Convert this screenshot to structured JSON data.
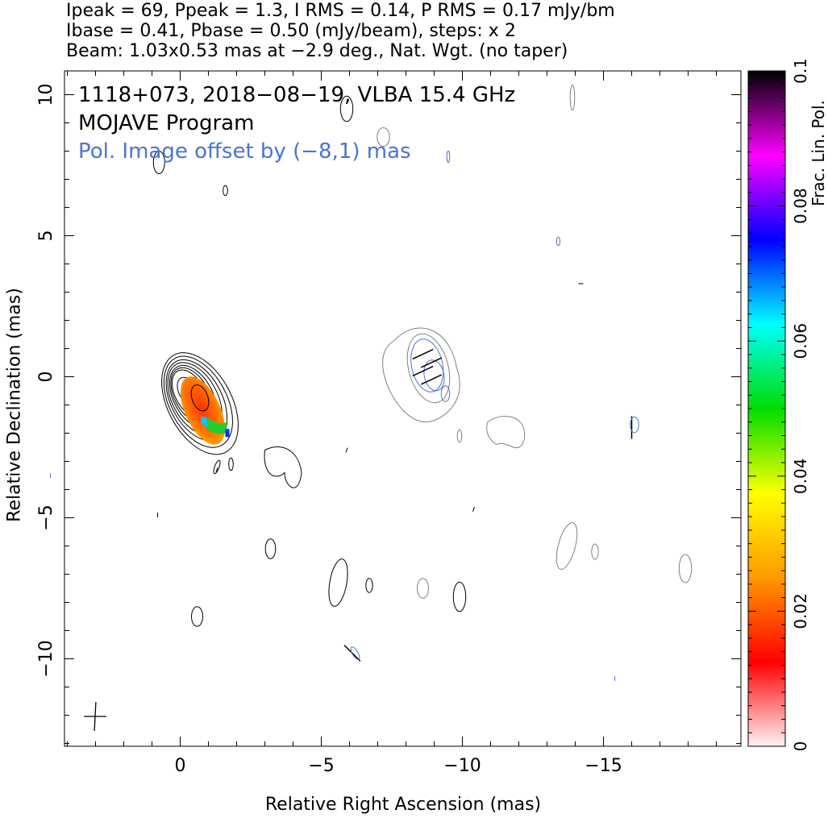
{
  "header": {
    "line1": "Ipeak = 69, Ppeak = 1.3, I RMS = 0.14, P RMS = 0.17 mJy/bm",
    "line2": "Ibase = 0.41, Pbase = 0.50 (mJy/beam), steps: x 2",
    "line3": "Beam: 1.03x0.53 mas at −2.9 deg., Nat. Wgt. (no taper)"
  },
  "colors": {
    "total_intensity_contour": "#000000",
    "offset_total_intensity_contour": "#808080",
    "polarized_contour": "#4a73d6",
    "evpa_tick": "#000000",
    "annotation_blue": "#4a73d6"
  },
  "chart_data": {
    "type": "contour",
    "title": "1118+073, 2018−08−19, VLBA 15.4 GHz",
    "subtitle": "MOJAVE Program",
    "annotation": "Pol. Image offset by (−8,1) mas",
    "xlabel": "Relative Right Ascension (mas)",
    "ylabel": "Relative Declination (mas)",
    "xlim": [
      4,
      -20
    ],
    "ylim": [
      -13,
      10.7
    ],
    "x_ticks": [
      0,
      -5,
      -10,
      -15
    ],
    "x_tick_labels": [
      "0",
      "−5",
      "−10",
      "−15"
    ],
    "y_ticks": [
      10,
      5,
      0,
      -5,
      -10
    ],
    "y_tick_labels": [
      "10",
      "5",
      "0",
      "−5",
      "−10"
    ],
    "colorbar": {
      "label": "Frac. Lin. Pol.",
      "range": [
        0,
        0.1
      ],
      "ticks": [
        0,
        0.02,
        0.04,
        0.06,
        0.08,
        0.1
      ],
      "tick_labels": [
        "0",
        "0.02",
        "0.04",
        "0.06",
        "0.08",
        "0.1"
      ],
      "colormap": [
        "#fff2f2",
        "#ff0000",
        "#ff9900",
        "#ffff00",
        "#00dd00",
        "#00ffff",
        "#0000ff",
        "#ff00ff",
        "#000000"
      ]
    },
    "core": {
      "center": [
        -0.7,
        -1.0
      ],
      "contour_levels": [
        0.41,
        0.82,
        1.64,
        3.28,
        6.56,
        13.1,
        26.2,
        52.5
      ],
      "peak": 69
    },
    "fractional_pol_region": {
      "center": [
        -0.8,
        -1.2
      ],
      "fractional_pol_range": [
        0.02,
        0.07
      ]
    },
    "offset_pol_component": {
      "center": [
        -8.8,
        0.3
      ]
    },
    "evpa_ticks": [
      {
        "x": -8.6,
        "y": 0.8,
        "angle_deg": 25
      },
      {
        "x": -8.9,
        "y": 0.5,
        "angle_deg": 25
      },
      {
        "x": -8.6,
        "y": 0.2,
        "angle_deg": 25
      },
      {
        "x": -8.9,
        "y": -0.1,
        "angle_deg": 25
      },
      {
        "x": -16.0,
        "y": -1.8,
        "angle_deg": 90
      },
      {
        "x": -6.1,
        "y": -9.8,
        "angle_deg": -45
      }
    ],
    "beam": {
      "major_mas": 1.03,
      "minor_mas": 0.53,
      "pa_deg": -2.9
    },
    "weighting": "Nat. Wgt. (no taper)"
  }
}
